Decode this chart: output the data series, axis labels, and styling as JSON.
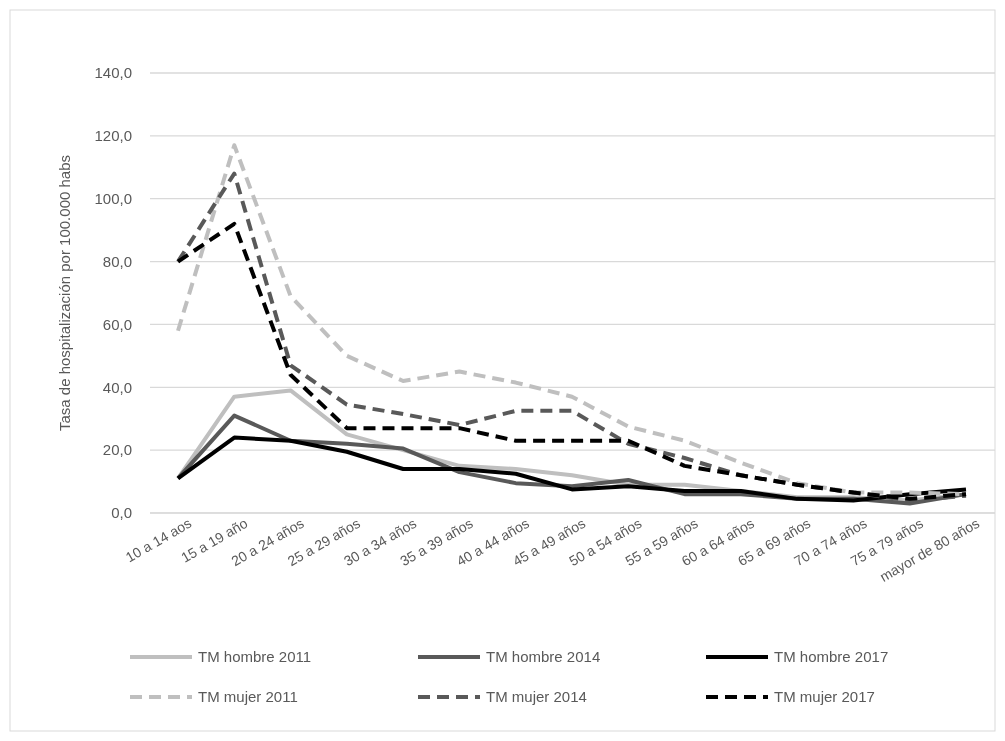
{
  "chart_data": {
    "type": "line",
    "ylabel": "Tasa de hospitalización por 100.000 habs",
    "categories": [
      "10 a 14 aos",
      "15 a 19 año",
      "20 a 24 años",
      "25 a 29 años",
      "30 a 34 años",
      "35 a 39 años",
      "40 a 44 años",
      "45 a 49 años",
      "50 a 54 años",
      "55 a 59 años",
      "60 a 64 años",
      "65 a 69 años",
      "70 a 74 años",
      "75 a 79 años",
      "mayor de 80 años"
    ],
    "ylim": [
      0,
      140
    ],
    "yticks": [
      {
        "value": 0,
        "label": "0,0"
      },
      {
        "value": 20,
        "label": "20,0"
      },
      {
        "value": 40,
        "label": "40,0"
      },
      {
        "value": 60,
        "label": "60,0"
      },
      {
        "value": 80,
        "label": "80,0"
      },
      {
        "value": 100,
        "label": "100,0"
      },
      {
        "value": 120,
        "label": "120,0"
      },
      {
        "value": 140,
        "label": "140,0"
      }
    ],
    "grid": "y",
    "legend": "bottom",
    "marker": "none",
    "series": [
      {
        "name": "TM hombre 2011",
        "color": "#bfbfbf",
        "line_style": "solid",
        "values": [
          11,
          37,
          39,
          25,
          20,
          15,
          14,
          12,
          9,
          9,
          7,
          5,
          5,
          4,
          6
        ]
      },
      {
        "name": "TM hombre 2014",
        "color": "#595959",
        "line_style": "solid",
        "values": [
          11,
          31,
          23,
          22,
          20.5,
          13,
          9.5,
          8.5,
          10.5,
          6,
          6,
          4.5,
          4.5,
          3,
          6
        ]
      },
      {
        "name": "TM hombre 2017",
        "color": "#000000",
        "line_style": "solid",
        "values": [
          11,
          24,
          23,
          19.5,
          14,
          14,
          12.5,
          7.5,
          8.5,
          7,
          7,
          4.5,
          4,
          6,
          7.5
        ]
      },
      {
        "name": "TM mujer 2011",
        "color": "#bfbfbf",
        "line_style": "dashed",
        "values": [
          58,
          117,
          69,
          50,
          42,
          45,
          41.5,
          37,
          27.5,
          23,
          16,
          9.5,
          6.5,
          6.5,
          6
        ]
      },
      {
        "name": "TM mujer 2014",
        "color": "#595959",
        "line_style": "dashed",
        "values": [
          80,
          108,
          47,
          34.5,
          31.5,
          28,
          32.5,
          32.5,
          22,
          17.5,
          12,
          9,
          6.5,
          4,
          5.5
        ]
      },
      {
        "name": "TM mujer 2017",
        "color": "#000000",
        "line_style": "dashed",
        "values": [
          80,
          92,
          44,
          27,
          27,
          27,
          23,
          23,
          23,
          15,
          12,
          9,
          6.5,
          4.5,
          6
        ]
      }
    ]
  }
}
